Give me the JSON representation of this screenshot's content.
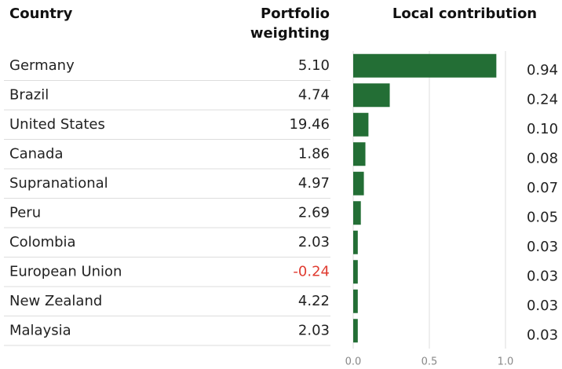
{
  "chart_data": {
    "type": "bar",
    "headers": {
      "country": "Country",
      "weighting": [
        "Portfolio",
        "weighting"
      ],
      "contribution": "Local contribution"
    },
    "categories": [
      "Germany",
      "Brazil",
      "United States",
      "Canada",
      "Supranational",
      "Peru",
      "Colombia",
      "European Union",
      "New Zealand",
      "Malaysia"
    ],
    "weighting": [
      5.1,
      4.74,
      19.46,
      1.86,
      4.97,
      2.69,
      2.03,
      -0.24,
      4.22,
      2.03
    ],
    "weighting_labels": [
      "5.10",
      "4.74",
      "19.46",
      "1.86",
      "4.97",
      "2.69",
      "2.03",
      "-0.24",
      "4.22",
      "2.03"
    ],
    "values": [
      0.94,
      0.24,
      0.1,
      0.08,
      0.07,
      0.05,
      0.03,
      0.03,
      0.03,
      0.03
    ],
    "value_labels": [
      "0.94",
      "0.24",
      "0.10",
      "0.08",
      "0.07",
      "0.05",
      "0.03",
      "0.03",
      "0.03",
      "0.03"
    ],
    "color": "#236e35",
    "negative_color": "#e03c31",
    "xlim": [
      0,
      1
    ],
    "xticks": [
      {
        "value": 0,
        "label": "0.0"
      },
      0.5,
      {
        "value": 1,
        "label": "1.0"
      }
    ],
    "grid": true
  }
}
